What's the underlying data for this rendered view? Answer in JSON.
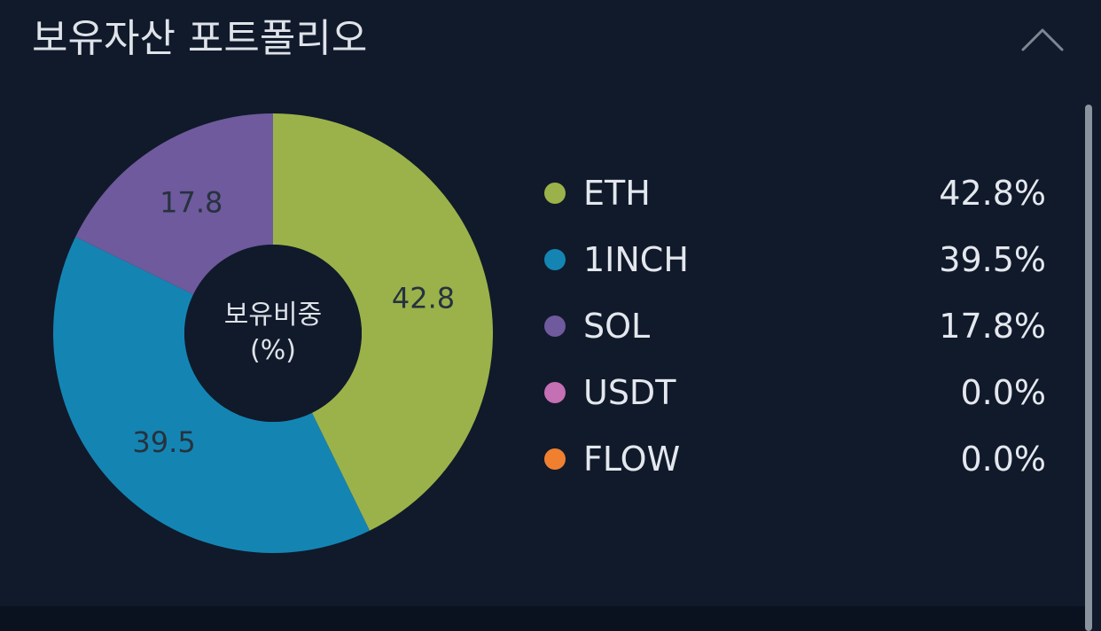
{
  "header": {
    "title": "보유자산 포트폴리오",
    "toggle_icon": "chevron-up-icon"
  },
  "colors": {
    "background": "#101a2b",
    "ETH": "#9bb24a",
    "1INCH": "#1485b3",
    "SOL": "#6e5a9c",
    "USDT": "#c56fb5",
    "FLOW": "#f08030"
  },
  "chart_data": {
    "type": "pie",
    "variant": "donut",
    "center_label_line1": "보유비중",
    "center_label_line2": "(%)",
    "categories": [
      "ETH",
      "1INCH",
      "SOL",
      "USDT",
      "FLOW"
    ],
    "values": [
      42.8,
      39.5,
      17.8,
      0.0,
      0.0
    ],
    "slice_labels": [
      "42.8",
      "39.5",
      "17.8",
      "",
      ""
    ]
  },
  "legend": {
    "items": [
      {
        "name": "ETH",
        "value": "42.8%",
        "color": "#9bb24a"
      },
      {
        "name": "1INCH",
        "value": "39.5%",
        "color": "#1485b3"
      },
      {
        "name": "SOL",
        "value": "17.8%",
        "color": "#6e5a9c"
      },
      {
        "name": "USDT",
        "value": "0.0%",
        "color": "#c56fb5"
      },
      {
        "name": "FLOW",
        "value": "0.0%",
        "color": "#f08030"
      }
    ]
  }
}
